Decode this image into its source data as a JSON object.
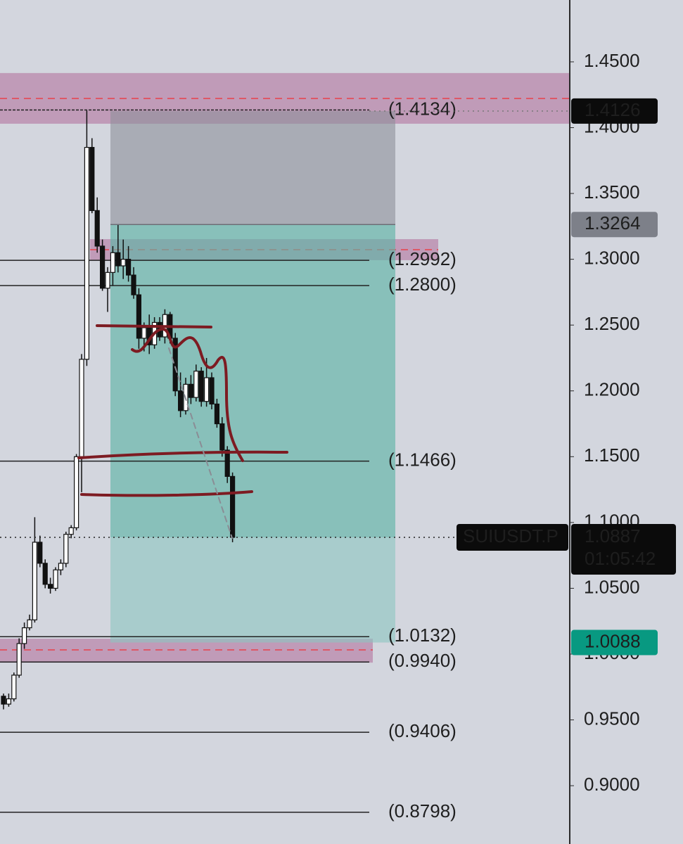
{
  "chart_data": {
    "type": "candlestick",
    "symbol": "SUIUSDT.P",
    "countdown": "01:05:42",
    "ylim": [
      0.8557,
      1.497
    ],
    "yticks": [
      {
        "value": 1.45,
        "label": "1.4500"
      },
      {
        "value": 1.4,
        "label": "1.4000"
      },
      {
        "value": 1.35,
        "label": "1.3500"
      },
      {
        "value": 1.3,
        "label": "1.3000"
      },
      {
        "value": 1.25,
        "label": "1.2500"
      },
      {
        "value": 1.2,
        "label": "1.2000"
      },
      {
        "value": 1.15,
        "label": "1.1500"
      },
      {
        "value": 1.1,
        "label": "1.1000"
      },
      {
        "value": 1.05,
        "label": "1.0500"
      },
      {
        "value": 1.0,
        "label": "1.0000"
      },
      {
        "value": 0.95,
        "label": "0.9500"
      },
      {
        "value": 0.9,
        "label": "0.9000"
      }
    ],
    "levels": [
      {
        "value": 1.4134,
        "label": "(1.4134)"
      },
      {
        "value": 1.2992,
        "label": "(1.2992)"
      },
      {
        "value": 1.28,
        "label": "(1.2800)"
      },
      {
        "value": 1.1466,
        "label": "(1.1466)"
      },
      {
        "value": 1.0132,
        "label": "(1.0132)"
      },
      {
        "value": 0.994,
        "label": "(0.9940)"
      },
      {
        "value": 0.9406,
        "label": "(0.9406)"
      },
      {
        "value": 0.8798,
        "label": "(0.8798)"
      }
    ],
    "zones": [
      {
        "ylim": [
          1.403,
          1.4415
        ],
        "line": 1.4222
      },
      {
        "ylim": [
          1.2993,
          1.3153
        ],
        "line": 1.3073
      },
      {
        "ylim": [
          0.9935,
          1.0117
        ],
        "line": 1.0032
      }
    ],
    "stop_price": 1.4126,
    "entry_price": 1.3264,
    "last_price": 1.0887,
    "target_price": 1.0088,
    "ohlc": [
      [
        0.968,
        0.97,
        0.958,
        0.962
      ],
      [
        0.962,
        0.97,
        0.96,
        0.966
      ],
      [
        0.966,
        0.986,
        0.964,
        0.984
      ],
      [
        0.984,
        1.012,
        0.982,
        1.008
      ],
      [
        1.008,
        1.024,
        1.004,
        1.02
      ],
      [
        1.02,
        1.03,
        1.018,
        1.026
      ],
      [
        1.026,
        1.104,
        1.024,
        1.085
      ],
      [
        1.085,
        1.09,
        1.066,
        1.069
      ],
      [
        1.069,
        1.072,
        1.05,
        1.053
      ],
      [
        1.053,
        1.058,
        1.046,
        1.05
      ],
      [
        1.05,
        1.066,
        1.048,
        1.064
      ],
      [
        1.064,
        1.072,
        1.06,
        1.069
      ],
      [
        1.069,
        1.093,
        1.066,
        1.091
      ],
      [
        1.091,
        1.098,
        1.088,
        1.096
      ],
      [
        1.096,
        1.152,
        1.094,
        1.15
      ],
      [
        1.15,
        1.228,
        1.123,
        1.224
      ],
      [
        1.224,
        1.413,
        1.219,
        1.385
      ],
      [
        1.385,
        1.392,
        1.335,
        1.337
      ],
      [
        1.337,
        1.347,
        1.305,
        1.31
      ],
      [
        1.31,
        1.315,
        1.276,
        1.278
      ],
      [
        1.278,
        1.294,
        1.26,
        1.29
      ],
      [
        1.29,
        1.31,
        1.28,
        1.305
      ],
      [
        1.305,
        1.326,
        1.29,
        1.295
      ],
      [
        1.295,
        1.315,
        1.285,
        1.3
      ],
      [
        1.3,
        1.31,
        1.283,
        1.288
      ],
      [
        1.288,
        1.294,
        1.27,
        1.273
      ],
      [
        1.273,
        1.278,
        1.232,
        1.24
      ],
      [
        1.24,
        1.252,
        1.23,
        1.248
      ],
      [
        1.248,
        1.258,
        1.228,
        1.235
      ],
      [
        1.235,
        1.256,
        1.232,
        1.252
      ],
      [
        1.252,
        1.256,
        1.238,
        1.241
      ],
      [
        1.241,
        1.262,
        1.236,
        1.258
      ],
      [
        1.258,
        1.26,
        1.236,
        1.24
      ],
      [
        1.24,
        1.244,
        1.196,
        1.2
      ],
      [
        1.2,
        1.214,
        1.18,
        1.185
      ],
      [
        1.185,
        1.21,
        1.182,
        1.205
      ],
      [
        1.205,
        1.212,
        1.19,
        1.195
      ],
      [
        1.195,
        1.22,
        1.192,
        1.215
      ],
      [
        1.215,
        1.218,
        1.188,
        1.192
      ],
      [
        1.192,
        1.225,
        1.188,
        1.21
      ],
      [
        1.21,
        1.214,
        1.186,
        1.19
      ],
      [
        1.19,
        1.194,
        1.172,
        1.175
      ],
      [
        1.175,
        1.18,
        1.15,
        1.155
      ],
      [
        1.155,
        1.158,
        1.13,
        1.135
      ],
      [
        1.135,
        1.138,
        1.085,
        1.0887
      ]
    ]
  }
}
